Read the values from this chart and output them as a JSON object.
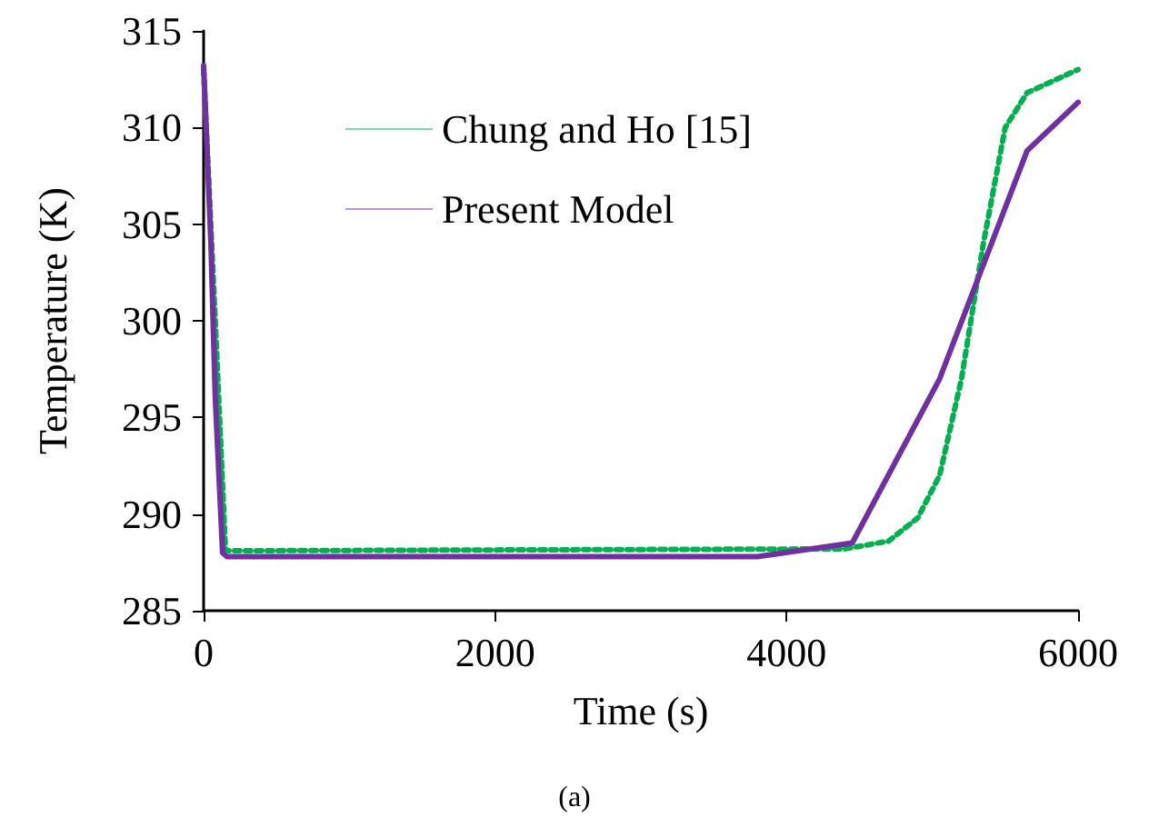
{
  "chart_data": {
    "type": "line",
    "xlabel": "Time (s)",
    "ylabel": "Temperature (K)",
    "xlim": [
      0,
      6000
    ],
    "xticks": [
      0,
      2000,
      4000,
      6000
    ],
    "ylim": [
      285,
      315
    ],
    "yticks": [
      285,
      290,
      295,
      300,
      305,
      310,
      315
    ],
    "grid": false,
    "legend": "top left",
    "marker": "none",
    "annotations": [
      "(a)"
    ],
    "series": [
      {
        "name": "Chung and Ho [15]",
        "color": "#00b050",
        "line_style": "dotted",
        "x": [
          0,
          80,
          150,
          4400,
          4700,
          4900,
          5050,
          5200,
          5350,
          5500,
          5650,
          6000
        ],
        "values": [
          313,
          300,
          288.1,
          288.2,
          288.6,
          289.8,
          292,
          297,
          304,
          310,
          311.8,
          313
        ]
      },
      {
        "name": "Present Model",
        "color": "#7030a0",
        "line_style": "solid",
        "x": [
          0,
          50,
          80,
          130,
          160,
          3800,
          4450,
          5050,
          5650,
          6000
        ],
        "values": [
          313.2,
          304,
          296,
          288,
          287.8,
          287.8,
          288.5,
          297,
          308.8,
          311.3
        ]
      }
    ]
  }
}
